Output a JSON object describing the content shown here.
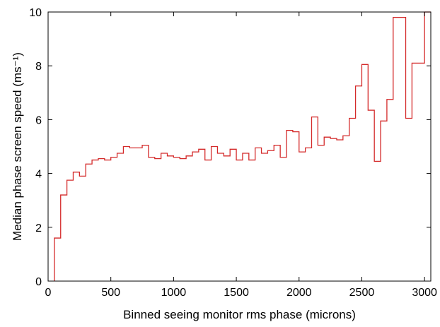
{
  "chart_data": {
    "type": "line",
    "style": "step",
    "xlabel": "Binned seeing monitor rms phase (microns)",
    "ylabel": "Median phase screen speed (ms⁻¹)",
    "xlim": [
      0,
      3050
    ],
    "ylim": [
      0,
      10
    ],
    "xticks": [
      0,
      500,
      1000,
      1500,
      2000,
      2500,
      3000
    ],
    "yticks": [
      0,
      2,
      4,
      6,
      8,
      10
    ],
    "grid": false,
    "line_color": "#d42a2a",
    "bin_width": 50,
    "series": [
      {
        "x": [
          50,
          100,
          150,
          200,
          250,
          300,
          350,
          400,
          450,
          500,
          550,
          600,
          650,
          700,
          750,
          800,
          850,
          900,
          950,
          1000,
          1050,
          1100,
          1150,
          1200,
          1250,
          1300,
          1350,
          1400,
          1450,
          1500,
          1550,
          1600,
          1650,
          1700,
          1750,
          1800,
          1850,
          1900,
          1950,
          2000,
          2050,
          2100,
          2150,
          2200,
          2250,
          2300,
          2350,
          2400,
          2450,
          2500,
          2550,
          2600,
          2650,
          2700,
          2750,
          2800,
          2850,
          2900,
          2950,
          3000
        ],
        "values": [
          1.6,
          3.2,
          3.75,
          4.05,
          3.9,
          4.35,
          4.5,
          4.55,
          4.5,
          4.6,
          4.75,
          5.0,
          4.95,
          4.95,
          5.05,
          4.6,
          4.55,
          4.75,
          4.65,
          4.6,
          4.55,
          4.65,
          4.8,
          4.9,
          4.5,
          5.0,
          4.75,
          4.65,
          4.9,
          4.5,
          4.75,
          4.5,
          4.95,
          4.75,
          4.85,
          5.05,
          4.6,
          5.6,
          5.55,
          4.8,
          4.95,
          6.1,
          5.05,
          5.35,
          5.3,
          5.25,
          5.4,
          6.05,
          7.25,
          8.05,
          6.35,
          4.45,
          5.95,
          6.75,
          9.8,
          9.8,
          6.05,
          8.1,
          8.1,
          10.0
        ]
      }
    ]
  }
}
